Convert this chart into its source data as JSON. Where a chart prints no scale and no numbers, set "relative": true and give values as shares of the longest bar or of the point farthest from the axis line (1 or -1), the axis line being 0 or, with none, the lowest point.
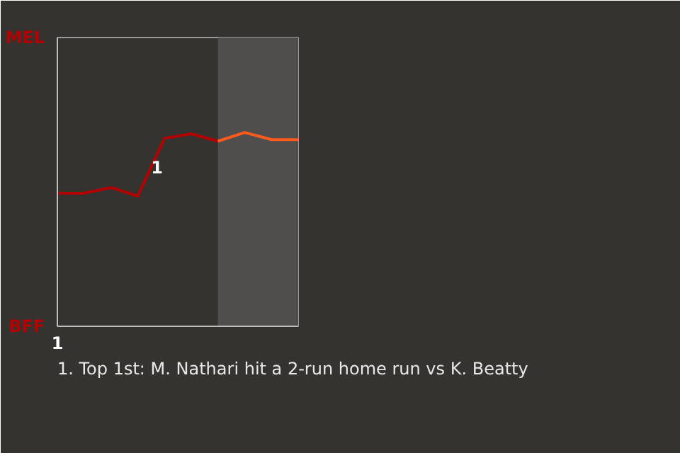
{
  "chart_data": {
    "type": "line",
    "categories": [
      null,
      null,
      null,
      null,
      null,
      null,
      null,
      null,
      null,
      null
    ],
    "relative": true,
    "series": [
      {
        "color": "#b30000",
        "values": [
          0.687,
          0.687,
          0.716,
          0.672,
          0.97,
          0.993,
          0.955,
          null,
          null,
          null
        ]
      },
      {
        "color": "#ff5a1e",
        "values": [
          null,
          null,
          null,
          null,
          null,
          null,
          0.955,
          1,
          0.963,
          0.963
        ]
      }
    ],
    "annotations": [
      "MEL",
      "1",
      "BFF",
      "1",
      "1. Top 1st: M. Nathari hit a 2-run home run vs K. Beatty"
    ],
    "marker": "none",
    "line_style": "solid"
  }
}
